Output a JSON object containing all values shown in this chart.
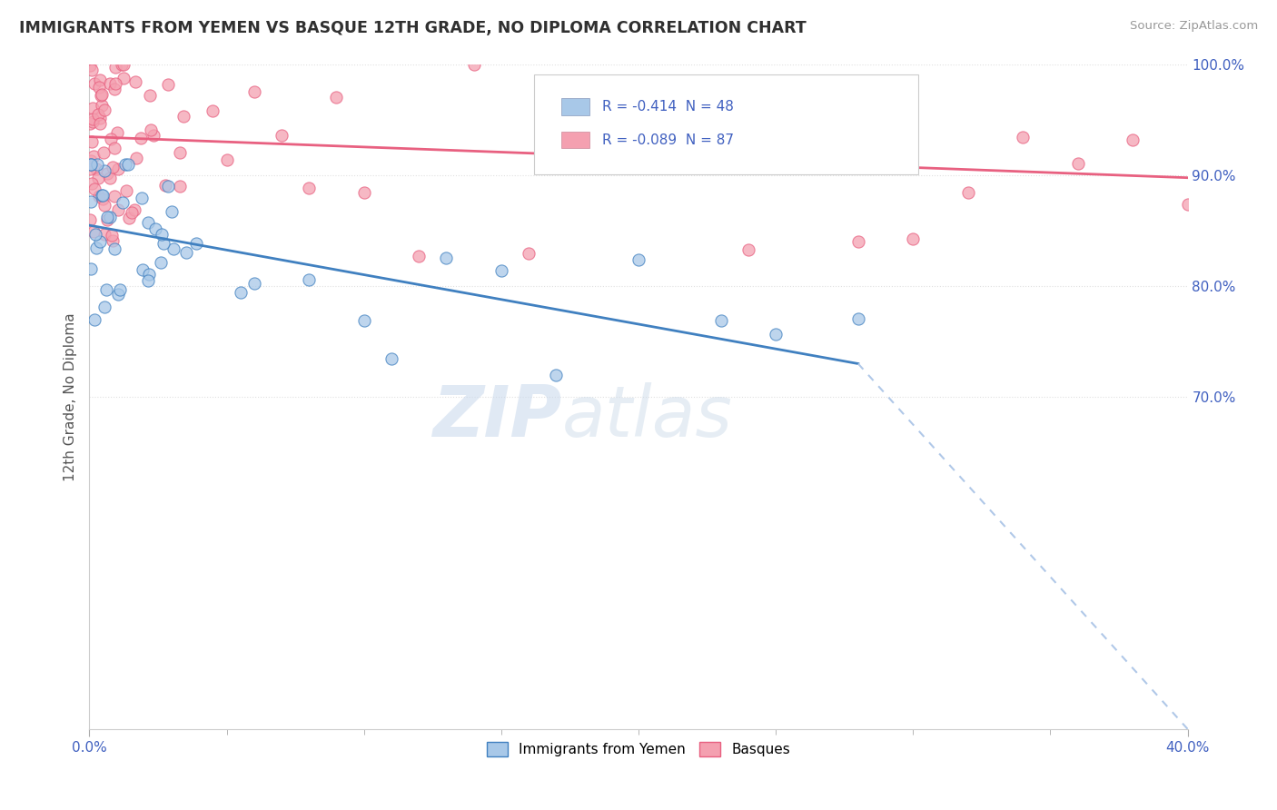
{
  "title": "IMMIGRANTS FROM YEMEN VS BASQUE 12TH GRADE, NO DIPLOMA CORRELATION CHART",
  "source_text": "Source: ZipAtlas.com",
  "ylabel": "12th Grade, No Diploma",
  "xlim": [
    0.0,
    40.0
  ],
  "ylim": [
    40.0,
    100.0
  ],
  "x_ticks": [
    0.0,
    40.0
  ],
  "y_ticks": [
    100.0,
    90.0,
    80.0,
    70.0
  ],
  "legend_R_blue": "-0.414",
  "legend_N_blue": "48",
  "legend_R_pink": "-0.089",
  "legend_N_pink": "87",
  "legend_label_blue": "Immigrants from Yemen",
  "legend_label_pink": "Basques",
  "color_blue": "#a8c8e8",
  "color_pink": "#f4a0b0",
  "color_blue_line": "#4080c0",
  "color_pink_line": "#e86080",
  "color_blue_line_text": "#3070b0",
  "color_dashed": "#b0c8e8",
  "watermark_zip": "ZIP",
  "watermark_atlas": "atlas",
  "title_color": "#303030",
  "axis_label_color": "#4060c0",
  "grid_color": "#e0e0e0",
  "blue_line_x0": 0.0,
  "blue_line_y0": 85.5,
  "blue_line_x1": 28.0,
  "blue_line_y1": 73.0,
  "blue_dash_x0": 28.0,
  "blue_dash_y0": 73.0,
  "blue_dash_x1": 40.0,
  "blue_dash_y1": 40.0,
  "pink_line_x0": 0.0,
  "pink_line_y0": 93.5,
  "pink_line_x1": 40.0,
  "pink_line_y1": 89.8
}
